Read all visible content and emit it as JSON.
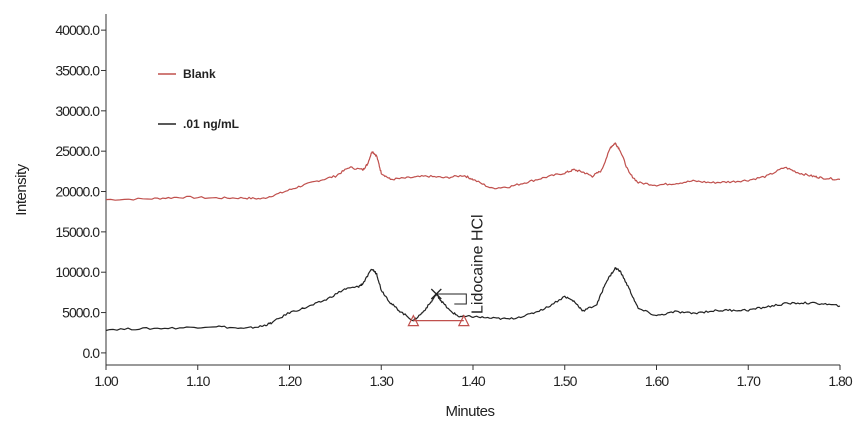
{
  "chart_data": {
    "type": "line",
    "title": "",
    "xlabel": "Minutes",
    "ylabel": "Intensity",
    "xlim": [
      1.0,
      1.8
    ],
    "ylim": [
      -1500,
      42000
    ],
    "x_ticks": [
      "1.00",
      "1.10",
      "1.20",
      "1.30",
      "1.40",
      "1.50",
      "1.60",
      "1.70",
      "1.80"
    ],
    "y_ticks": [
      "0.0",
      "5000.0",
      "10000.0",
      "15000.0",
      "20000.0",
      "25000.0",
      "30000.0",
      "35000.0",
      "40000.0"
    ],
    "grid": false,
    "legend_position": "top-left",
    "series": [
      {
        "name": "Blank",
        "color": "#c0504d",
        "points": [
          [
            1.0,
            19000
          ],
          [
            1.05,
            19100
          ],
          [
            1.08,
            19300
          ],
          [
            1.12,
            19200
          ],
          [
            1.15,
            19200
          ],
          [
            1.17,
            19100
          ],
          [
            1.19,
            19800
          ],
          [
            1.21,
            20600
          ],
          [
            1.23,
            21300
          ],
          [
            1.25,
            21900
          ],
          [
            1.265,
            23000
          ],
          [
            1.28,
            22700
          ],
          [
            1.285,
            23400
          ],
          [
            1.29,
            25000
          ],
          [
            1.295,
            24400
          ],
          [
            1.3,
            22300
          ],
          [
            1.31,
            21500
          ],
          [
            1.33,
            21700
          ],
          [
            1.35,
            21900
          ],
          [
            1.37,
            21700
          ],
          [
            1.39,
            22000
          ],
          [
            1.4,
            21500
          ],
          [
            1.42,
            20400
          ],
          [
            1.44,
            20600
          ],
          [
            1.46,
            21200
          ],
          [
            1.48,
            21800
          ],
          [
            1.5,
            22300
          ],
          [
            1.51,
            22700
          ],
          [
            1.52,
            22400
          ],
          [
            1.53,
            21900
          ],
          [
            1.54,
            22600
          ],
          [
            1.55,
            25500
          ],
          [
            1.555,
            26000
          ],
          [
            1.56,
            25200
          ],
          [
            1.57,
            22300
          ],
          [
            1.58,
            21100
          ],
          [
            1.6,
            20800
          ],
          [
            1.62,
            21000
          ],
          [
            1.64,
            21300
          ],
          [
            1.66,
            21100
          ],
          [
            1.68,
            21200
          ],
          [
            1.7,
            21400
          ],
          [
            1.72,
            21900
          ],
          [
            1.74,
            23000
          ],
          [
            1.755,
            22300
          ],
          [
            1.77,
            21900
          ],
          [
            1.78,
            21700
          ],
          [
            1.8,
            21500
          ]
        ]
      },
      {
        "name": ".01 ng/mL",
        "color": "#222222",
        "points": [
          [
            1.0,
            2900
          ],
          [
            1.04,
            3000
          ],
          [
            1.08,
            3100
          ],
          [
            1.12,
            3300
          ],
          [
            1.15,
            3000
          ],
          [
            1.17,
            3300
          ],
          [
            1.18,
            3700
          ],
          [
            1.2,
            5000
          ],
          [
            1.22,
            5700
          ],
          [
            1.24,
            6600
          ],
          [
            1.26,
            7900
          ],
          [
            1.275,
            8200
          ],
          [
            1.28,
            8600
          ],
          [
            1.29,
            10400
          ],
          [
            1.295,
            9800
          ],
          [
            1.3,
            7800
          ],
          [
            1.31,
            6200
          ],
          [
            1.32,
            5200
          ],
          [
            1.335,
            4000
          ],
          [
            1.345,
            5000
          ],
          [
            1.355,
            6400
          ],
          [
            1.36,
            7300
          ],
          [
            1.365,
            6500
          ],
          [
            1.375,
            5200
          ],
          [
            1.385,
            4500
          ],
          [
            1.4,
            4500
          ],
          [
            1.42,
            4300
          ],
          [
            1.44,
            4200
          ],
          [
            1.46,
            4700
          ],
          [
            1.48,
            5600
          ],
          [
            1.5,
            7000
          ],
          [
            1.51,
            6400
          ],
          [
            1.52,
            5200
          ],
          [
            1.535,
            6000
          ],
          [
            1.545,
            8800
          ],
          [
            1.555,
            10500
          ],
          [
            1.56,
            10200
          ],
          [
            1.57,
            8000
          ],
          [
            1.58,
            5500
          ],
          [
            1.6,
            4600
          ],
          [
            1.62,
            5100
          ],
          [
            1.64,
            4900
          ],
          [
            1.66,
            5200
          ],
          [
            1.68,
            5300
          ],
          [
            1.7,
            5300
          ],
          [
            1.72,
            5700
          ],
          [
            1.74,
            6100
          ],
          [
            1.76,
            6200
          ],
          [
            1.78,
            6100
          ],
          [
            1.8,
            5800
          ]
        ]
      }
    ],
    "annotations": [
      {
        "label": "Lidocaine HCl",
        "apex": [
          1.36,
          7300
        ],
        "baseline_start": [
          1.335,
          4000
        ],
        "baseline_end": [
          1.39,
          4000
        ]
      }
    ]
  }
}
